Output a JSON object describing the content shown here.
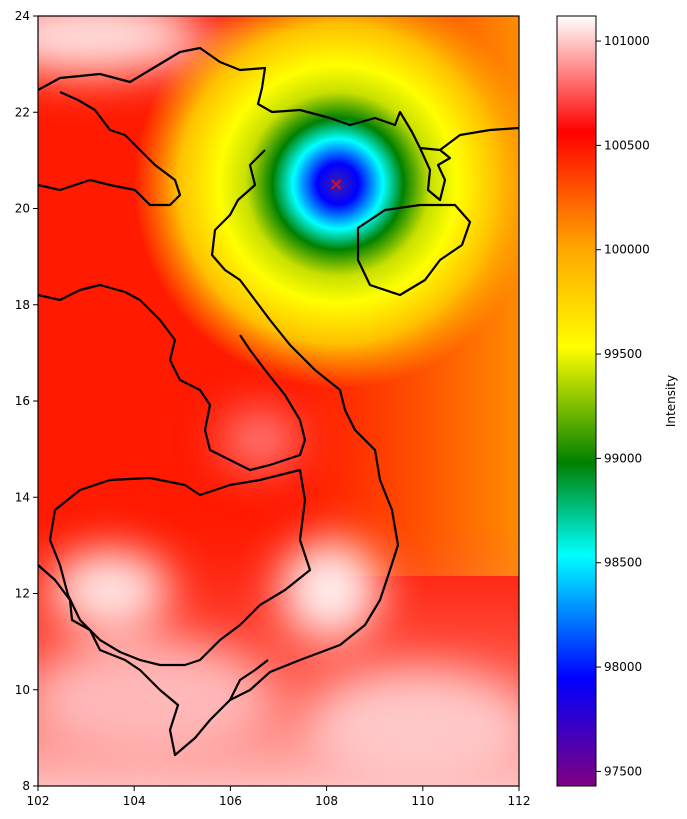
{
  "chart_data": {
    "type": "heatmap",
    "xlim": [
      102,
      112
    ],
    "ylim": [
      8,
      24
    ],
    "xticks": [
      "102",
      "104",
      "106",
      "108",
      "110",
      "112"
    ],
    "yticks": [
      "8",
      "10",
      "12",
      "14",
      "16",
      "18",
      "20",
      "22",
      "24"
    ],
    "xtick_values": [
      102,
      104,
      106,
      108,
      110,
      112
    ],
    "ytick_values": [
      8,
      10,
      12,
      14,
      16,
      18,
      20,
      22,
      24
    ],
    "colorbar": {
      "label": "Intensity",
      "range": [
        97430,
        101120
      ],
      "ticks": [
        "97500",
        "98000",
        "98500",
        "99000",
        "99500",
        "100000",
        "100500",
        "101000"
      ],
      "tick_values": [
        97500,
        98000,
        98500,
        99000,
        99500,
        100000,
        100500,
        101000
      ],
      "colormap_stops": [
        "#800080",
        "#0000ff",
        "#00ffff",
        "#008000",
        "#ffff00",
        "#ffa500",
        "#ff0000",
        "#ffffff"
      ]
    },
    "low_center": {
      "lon": 108.2,
      "lat": 20.5,
      "value": 97430,
      "marker": "x",
      "marker_color": "#ff0000"
    },
    "coastline_color": "#000000",
    "grid": false
  }
}
